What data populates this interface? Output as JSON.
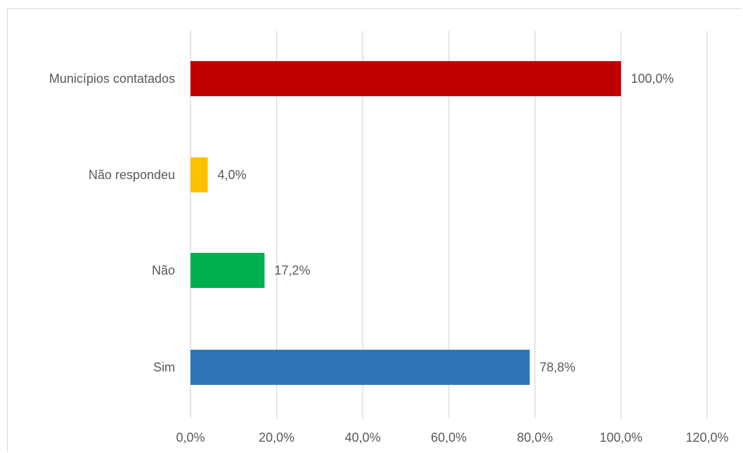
{
  "chart_data": {
    "type": "bar",
    "orientation": "horizontal",
    "categories": [
      "Municípios contatados",
      "Não respondeu",
      "Não",
      "Sim"
    ],
    "values": [
      100.0,
      4.0,
      17.2,
      78.8
    ],
    "data_labels": [
      "100,0%",
      "4,0%",
      "17,2%",
      "78,8%"
    ],
    "colors": [
      "#C00000",
      "#FFC000",
      "#00B050",
      "#2E75B6"
    ],
    "xlim": [
      0,
      120
    ],
    "x_ticks": [
      0,
      20,
      40,
      60,
      80,
      100,
      120
    ],
    "x_tick_labels": [
      "0,0%",
      "20,0%",
      "40,0%",
      "60,0%",
      "80,0%",
      "100,0%",
      "120,0%"
    ],
    "grid": true,
    "legend": "none"
  }
}
